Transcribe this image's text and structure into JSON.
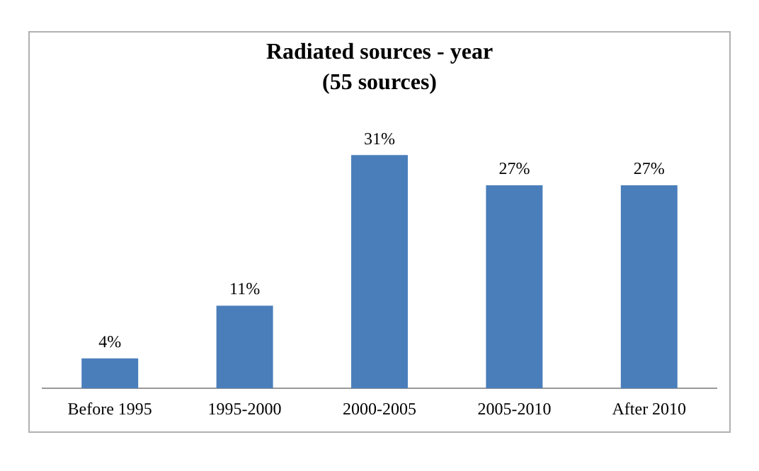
{
  "chart_data": {
    "type": "bar",
    "title": "Radiated sources - year",
    "subtitle": "(55 sources)",
    "categories": [
      "Before 1995",
      "1995-2000",
      "2000-2005",
      "2005-2010",
      "After 2010"
    ],
    "values": [
      4,
      11,
      31,
      27,
      27
    ],
    "value_labels": [
      "4%",
      "11%",
      "31%",
      "27%",
      "27%"
    ],
    "color": "#4a7ebb",
    "grid": false,
    "legend": false
  }
}
